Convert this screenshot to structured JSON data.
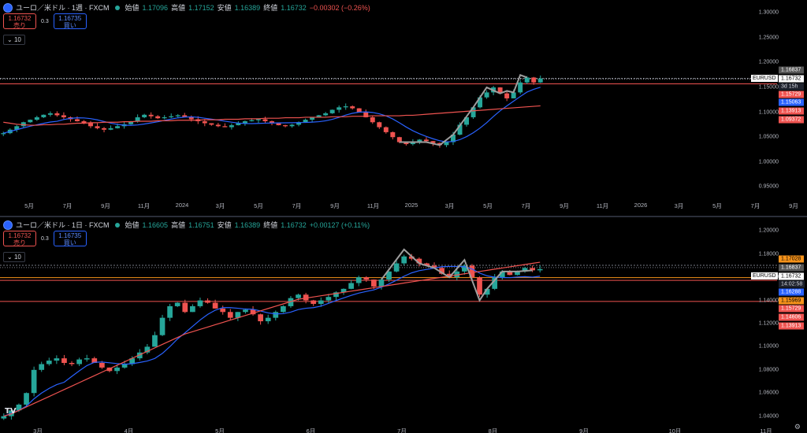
{
  "weekly": {
    "title": "ユーロ／米ドル · 1週 · FXCM",
    "open_label": "始値",
    "open": "1.17096",
    "high_label": "高値",
    "high": "1.17152",
    "low_label": "安値",
    "low": "1.16389",
    "close_label": "終値",
    "close": "1.16732",
    "change": "−0.00302 (−0.26%)",
    "sell_price": "1.16732",
    "sell_label": "売り",
    "spread": "0.3",
    "buy_price": "1.16735",
    "buy_label": "買い",
    "indicator": "10",
    "price_levels": [
      "1.30000",
      "1.25000",
      "1.20000",
      "1.15000",
      "1.10000",
      "1.05000",
      "1.00000",
      "0.95000"
    ],
    "x_labels": [
      "5月",
      "7月",
      "9月",
      "11月",
      "2024",
      "3月",
      "5月",
      "7月",
      "9月",
      "11月",
      "2025",
      "3月",
      "5月",
      "7月",
      "9月",
      "11月",
      "2026",
      "3月",
      "5月",
      "7月",
      "9月"
    ],
    "tags": {
      "t1": "1.16837",
      "symbol": "EURUSD",
      "current": "1.16732",
      "countdown": "3d 15h",
      "t2": "1.15729",
      "t3": "1.15063",
      "t4": "1.13913",
      "t5": "1.09372"
    },
    "chart_data": {
      "type": "candlestick",
      "title": "ユーロ／米ドル · 1週 · FXCM",
      "ylim": [
        0.93,
        1.31
      ],
      "series": [
        {
          "name": "",
          "values": [
            1.058,
            1.065,
            1.072,
            1.08,
            1.085,
            1.09,
            1.095,
            1.098,
            1.094,
            1.09,
            1.086,
            1.082,
            1.078,
            1.072,
            1.068,
            1.065,
            1.068,
            1.072,
            1.076,
            1.082,
            1.09,
            1.095,
            1.092,
            1.088,
            1.09,
            1.092,
            1.094,
            1.09,
            1.086,
            1.082,
            1.078,
            1.075,
            1.072,
            1.07,
            1.074,
            1.078,
            1.082,
            1.084,
            1.086,
            1.082,
            1.078,
            1.074,
            1.072,
            1.075,
            1.08,
            1.085,
            1.09,
            1.094,
            1.098,
            1.105,
            1.11,
            1.112,
            1.108,
            1.1,
            1.09,
            1.08,
            1.07,
            1.06,
            1.05,
            1.04,
            1.036,
            1.04,
            1.045,
            1.042,
            1.038,
            1.034,
            1.04,
            1.055,
            1.075,
            1.09,
            1.11,
            1.13,
            1.14,
            1.15,
            1.138,
            1.128,
            1.14,
            1.16,
            1.17,
            1.16,
            1.168
          ]
        },
        {
          "name": "",
          "values": [
            1.08,
            1.078,
            1.076,
            1.075,
            1.074,
            1.074,
            1.075,
            1.075,
            1.076,
            1.076,
            1.077,
            1.078,
            1.078,
            1.079,
            1.079,
            1.08,
            1.08,
            1.08,
            1.081,
            1.081,
            1.082,
            1.082,
            1.082,
            1.083,
            1.083,
            1.083,
            1.084,
            1.084,
            1.084,
            1.084,
            1.085,
            1.085,
            1.085,
            1.086,
            1.086,
            1.086,
            1.087,
            1.087,
            1.087,
            1.088,
            1.088,
            1.088,
            1.089,
            1.089,
            1.089,
            1.09,
            1.09,
            1.09,
            1.09,
            1.091,
            1.091,
            1.091,
            1.092,
            1.092,
            1.092,
            1.093,
            1.093,
            1.093,
            1.093,
            1.093,
            1.094,
            1.094,
            1.095,
            1.096,
            1.097,
            1.098,
            1.099,
            1.1,
            1.101,
            1.102,
            1.103,
            1.104,
            1.105,
            1.106,
            1.107,
            1.108,
            1.109,
            1.11,
            1.111,
            1.112,
            1.113
          ]
        }
      ]
    }
  },
  "daily": {
    "title": "ユーロ／米ドル · 1日 · FXCM",
    "open_label": "始値",
    "open": "1.16605",
    "high_label": "高値",
    "high": "1.16751",
    "low_label": "安値",
    "low": "1.16389",
    "close_label": "終値",
    "close": "1.16732",
    "change": "+0.00127 (+0.11%)",
    "sell_price": "1.16732",
    "sell_label": "売り",
    "spread": "0.3",
    "buy_price": "1.16735",
    "buy_label": "買い",
    "indicator": "10",
    "price_levels": [
      "1.20000",
      "1.18000",
      "1.16000",
      "1.14000",
      "1.12000",
      "1.10000",
      "1.08000",
      "1.06000",
      "1.04000"
    ],
    "x_labels": [
      "3月",
      "4月",
      "5月",
      "6月",
      "7月",
      "8月",
      "9月",
      "10月",
      "11月"
    ],
    "tags": {
      "t0": "1.17028",
      "t1": "1.16837",
      "symbol": "EURUSD",
      "current": "1.16732",
      "countdown": "14:02:58",
      "t2": "1.16288",
      "t3": "1.15969",
      "t4": "1.15729",
      "t5": "1.14606",
      "t6": "1.13913"
    },
    "chart_data": {
      "type": "candlestick",
      "title": "ユーロ／米ドル · 1日 · FXCM",
      "ylim": [
        1.035,
        1.205
      ],
      "series": [
        {
          "name": "",
          "values": [
            1.04,
            1.045,
            1.05,
            1.06,
            1.08,
            1.085,
            1.088,
            1.09,
            1.086,
            1.085,
            1.089,
            1.09,
            1.086,
            1.082,
            1.079,
            1.082,
            1.085,
            1.09,
            1.095,
            1.1,
            1.11,
            1.125,
            1.135,
            1.138,
            1.13,
            1.135,
            1.14,
            1.138,
            1.133,
            1.13,
            1.125,
            1.13,
            1.132,
            1.128,
            1.122,
            1.125,
            1.13,
            1.135,
            1.142,
            1.145,
            1.14,
            1.137,
            1.14,
            1.143,
            1.147,
            1.15,
            1.155,
            1.16,
            1.158,
            1.152,
            1.158,
            1.165,
            1.172,
            1.178,
            1.176,
            1.172,
            1.17,
            1.168,
            1.163,
            1.16,
            1.165,
            1.17,
            1.16,
            1.145,
            1.15,
            1.16,
            1.165,
            1.162,
            1.165,
            1.168,
            1.166,
            1.167
          ]
        },
        {
          "name": "",
          "values": [
            1.04,
            1.042,
            1.045,
            1.048,
            1.051,
            1.054,
            1.057,
            1.06,
            1.063,
            1.066,
            1.069,
            1.072,
            1.075,
            1.078,
            1.081,
            1.084,
            1.087,
            1.09,
            1.093,
            1.096,
            1.099,
            1.102,
            1.105,
            1.108,
            1.111,
            1.113,
            1.115,
            1.117,
            1.119,
            1.121,
            1.123,
            1.125,
            1.127,
            1.129,
            1.131,
            1.133,
            1.135,
            1.137,
            1.139,
            1.141,
            1.142,
            1.143,
            1.144,
            1.145,
            1.146,
            1.147,
            1.148,
            1.149,
            1.15,
            1.151,
            1.152,
            1.153,
            1.154,
            1.155,
            1.156,
            1.157,
            1.158,
            1.159,
            1.16,
            1.161,
            1.162,
            1.163,
            1.164,
            1.165,
            1.166,
            1.167,
            1.168,
            1.169,
            1.17,
            1.171,
            1.172,
            1.173
          ]
        }
      ]
    }
  }
}
